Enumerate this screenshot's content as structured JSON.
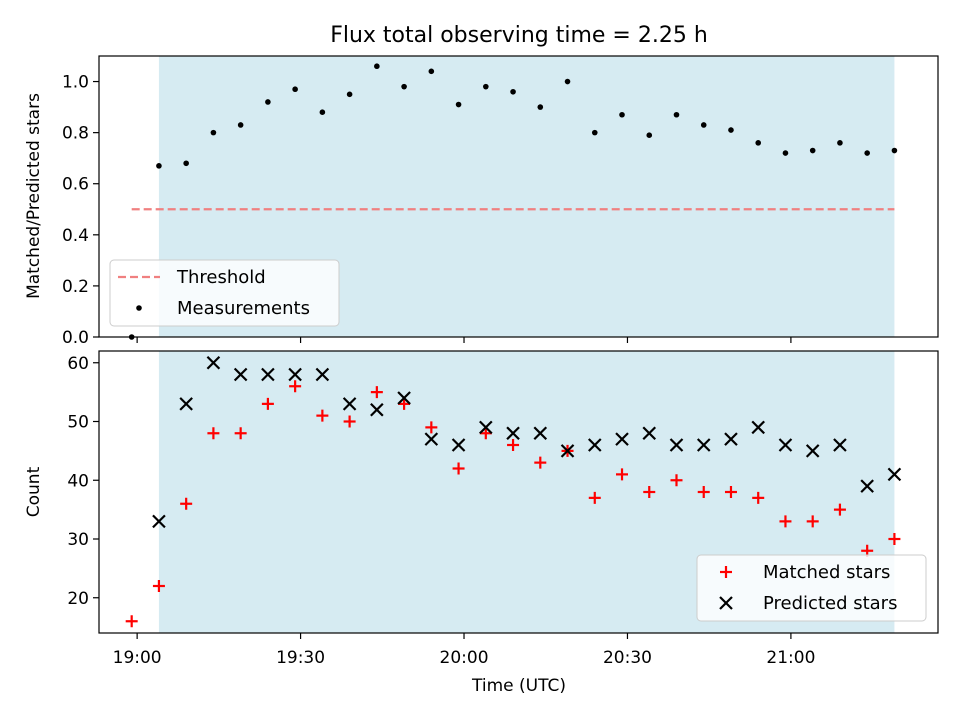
{
  "chart_data": [
    {
      "type": "scatter",
      "title": "Flux total observing time = 2.25 h",
      "xlabel": "",
      "ylabel": "Matched/Predicted stars",
      "ylim": [
        0,
        1.1
      ],
      "yticks": [
        "0.0",
        "0.2",
        "0.4",
        "0.6",
        "0.8",
        "1.0"
      ],
      "grid": false,
      "legend_position": "lower-left",
      "observing_window": [
        "19:04",
        "21:19"
      ],
      "colors": {
        "window": "#add8e6",
        "threshold": "#f08080",
        "measurements": "#000000"
      },
      "threshold": {
        "name": "Threshold",
        "value": 0.5,
        "x_range": [
          "18:59",
          "21:19"
        ]
      },
      "series": [
        {
          "name": "Measurements",
          "x": [
            "18:59",
            "19:04",
            "19:09",
            "19:14",
            "19:19",
            "19:24",
            "19:29",
            "19:34",
            "19:39",
            "19:44",
            "19:49",
            "19:54",
            "19:59",
            "20:04",
            "20:09",
            "20:14",
            "20:19",
            "20:24",
            "20:29",
            "20:34",
            "20:39",
            "20:44",
            "20:49",
            "20:54",
            "20:59",
            "21:04",
            "21:09",
            "21:14",
            "21:19"
          ],
          "values": [
            0.0,
            0.67,
            0.68,
            0.8,
            0.83,
            0.92,
            0.97,
            0.88,
            0.95,
            1.06,
            0.98,
            1.04,
            0.91,
            0.98,
            0.96,
            0.9,
            1.0,
            0.8,
            0.87,
            0.79,
            0.87,
            0.83,
            0.81,
            0.76,
            0.72,
            0.73,
            0.76,
            0.72,
            0.73
          ]
        }
      ]
    },
    {
      "type": "scatter",
      "xlabel": "Time (UTC)",
      "ylabel": "Count",
      "ylim": [
        14,
        62
      ],
      "xlim": [
        "18:53",
        "21:27"
      ],
      "yticks": [
        "20",
        "30",
        "40",
        "50",
        "60"
      ],
      "xticks": [
        "19:00",
        "19:30",
        "20:00",
        "20:30",
        "21:00"
      ],
      "grid": false,
      "legend_position": "lower-right",
      "observing_window": [
        "19:04",
        "21:19"
      ],
      "colors": {
        "window": "#add8e6",
        "matched": "#ff0000",
        "predicted": "#000000"
      },
      "series": [
        {
          "name": "Matched stars",
          "marker": "plus",
          "x": [
            "18:59",
            "19:04",
            "19:09",
            "19:14",
            "19:19",
            "19:24",
            "19:29",
            "19:34",
            "19:39",
            "19:44",
            "19:49",
            "19:54",
            "19:59",
            "20:04",
            "20:09",
            "20:14",
            "20:19",
            "20:24",
            "20:29",
            "20:34",
            "20:39",
            "20:44",
            "20:49",
            "20:54",
            "20:59",
            "21:04",
            "21:09",
            "21:14",
            "21:19"
          ],
          "values": [
            16,
            22,
            36,
            48,
            48,
            53,
            56,
            51,
            50,
            55,
            53,
            49,
            42,
            48,
            46,
            43,
            45,
            37,
            41,
            38,
            40,
            38,
            38,
            37,
            33,
            33,
            35,
            28,
            30
          ]
        },
        {
          "name": "Predicted stars",
          "marker": "x",
          "x": [
            "19:04",
            "19:09",
            "19:14",
            "19:19",
            "19:24",
            "19:29",
            "19:34",
            "19:39",
            "19:44",
            "19:49",
            "19:54",
            "19:59",
            "20:04",
            "20:09",
            "20:14",
            "20:19",
            "20:24",
            "20:29",
            "20:34",
            "20:39",
            "20:44",
            "20:49",
            "20:54",
            "20:59",
            "21:04",
            "21:09",
            "21:14",
            "21:19"
          ],
          "values": [
            33,
            53,
            60,
            58,
            58,
            58,
            58,
            53,
            52,
            54,
            47,
            46,
            49,
            48,
            48,
            45,
            46,
            47,
            48,
            46,
            46,
            47,
            49,
            46,
            45,
            46,
            39,
            41
          ]
        }
      ]
    }
  ]
}
